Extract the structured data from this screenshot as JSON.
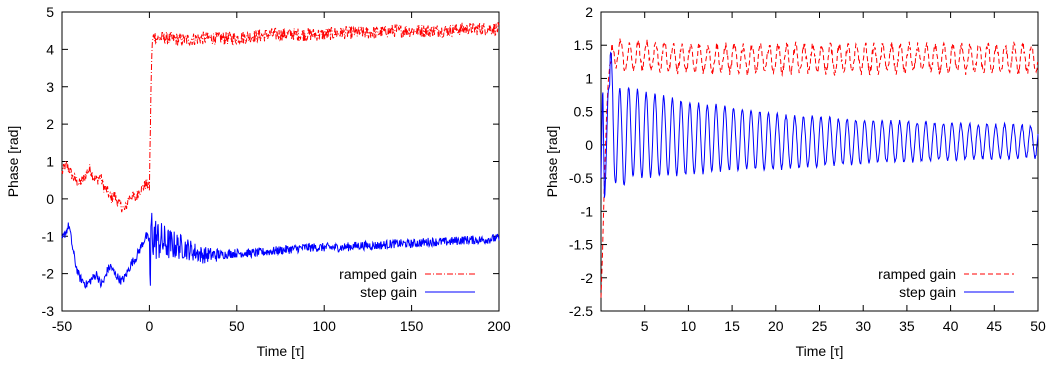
{
  "chart_data": [
    {
      "type": "line",
      "xlabel": "Time [τ]",
      "ylabel": "Phase [rad]",
      "xlim": [
        -50,
        200
      ],
      "ylim": [
        -3,
        5
      ],
      "xticks": [
        -50,
        0,
        50,
        100,
        150,
        200
      ],
      "yticks": [
        -3,
        -2,
        -1,
        0,
        1,
        2,
        3,
        4,
        5
      ],
      "legend_position": "bottom-right",
      "series": [
        {
          "name": "ramped gain",
          "color": "#ff0000",
          "dash": "dash-dot",
          "x": [
            -50,
            -48,
            -46,
            -44,
            -42,
            -40,
            -38,
            -36,
            -34,
            -32,
            -30,
            -28,
            -26,
            -24,
            -22,
            -20,
            -18,
            -16,
            -14,
            -12,
            -10,
            -8,
            -6,
            -4,
            -2,
            0,
            0.5,
            1,
            1.5,
            2,
            3,
            5,
            10,
            20,
            30,
            40,
            50,
            60,
            70,
            80,
            90,
            100,
            110,
            120,
            130,
            140,
            150,
            160,
            170,
            180,
            190,
            200
          ],
          "y": [
            0.7,
            0.9,
            0.8,
            0.6,
            0.5,
            0.4,
            0.5,
            0.7,
            0.8,
            0.6,
            0.5,
            0.6,
            0.3,
            0.2,
            0.0,
            0.1,
            -0.1,
            -0.2,
            -0.3,
            0.0,
            0.1,
            0.0,
            0.2,
            0.3,
            0.4,
            0.3,
            1.8,
            3.2,
            4.0,
            4.3,
            4.35,
            4.3,
            4.3,
            4.25,
            4.3,
            4.3,
            4.3,
            4.35,
            4.4,
            4.4,
            4.4,
            4.4,
            4.45,
            4.45,
            4.45,
            4.5,
            4.5,
            4.5,
            4.5,
            4.55,
            4.55,
            4.55
          ]
        },
        {
          "name": "step gain",
          "color": "#0000ff",
          "dash": "solid",
          "x": [
            -50,
            -48,
            -46,
            -44,
            -42,
            -40,
            -38,
            -36,
            -34,
            -32,
            -30,
            -28,
            -26,
            -24,
            -22,
            -20,
            -18,
            -16,
            -14,
            -12,
            -10,
            -8,
            -6,
            -4,
            -2,
            0,
            0.5,
            1,
            2,
            5,
            10,
            20,
            30,
            40,
            50,
            60,
            70,
            80,
            90,
            100,
            110,
            120,
            130,
            140,
            150,
            160,
            170,
            180,
            190,
            200
          ],
          "y": [
            -1.1,
            -0.9,
            -0.7,
            -1.3,
            -1.8,
            -2.1,
            -2.2,
            -2.3,
            -2.2,
            -2.1,
            -2.0,
            -2.3,
            -2.2,
            -1.9,
            -1.8,
            -2.0,
            -2.1,
            -2.2,
            -2.1,
            -1.9,
            -1.7,
            -1.6,
            -1.4,
            -1.2,
            -1.0,
            -1.1,
            -2.6,
            -0.6,
            -1.0,
            -1.1,
            -1.2,
            -1.3,
            -1.5,
            -1.5,
            -1.45,
            -1.45,
            -1.4,
            -1.35,
            -1.3,
            -1.3,
            -1.3,
            -1.25,
            -1.25,
            -1.2,
            -1.2,
            -1.15,
            -1.15,
            -1.1,
            -1.1,
            -1.05
          ]
        }
      ]
    },
    {
      "type": "line",
      "xlabel": "Time [τ]",
      "ylabel": "Phase [rad]",
      "xlim": [
        0,
        50
      ],
      "ylim": [
        -2.5,
        2
      ],
      "xticks": [
        5,
        10,
        15,
        20,
        25,
        30,
        35,
        40,
        45,
        50
      ],
      "yticks": [
        -2.5,
        -2,
        -1.5,
        -1,
        -0.5,
        0,
        0.5,
        1,
        1.5,
        2
      ],
      "legend_position": "bottom-right",
      "series": [
        {
          "name": "ramped gain",
          "color": "#ff0000",
          "dash": "dashed",
          "x": [
            0,
            0.2,
            0.4,
            0.6,
            0.8,
            1,
            1.5,
            2,
            3,
            5,
            10,
            15,
            20,
            25,
            30,
            35,
            40,
            45,
            50
          ],
          "y": [
            -2.3,
            -1.5,
            -0.5,
            0.3,
            0.9,
            1.2,
            1.35,
            1.4,
            1.3,
            1.35,
            1.3,
            1.3,
            1.3,
            1.3,
            1.3,
            1.3,
            1.3,
            1.3,
            1.3
          ]
        },
        {
          "name": "step gain",
          "color": "#0000ff",
          "dash": "solid",
          "x": [
            0,
            0.2,
            0.4,
            0.6,
            0.8,
            1,
            1.5,
            2,
            2.5,
            3,
            5,
            10,
            15,
            20,
            25,
            30,
            35,
            40,
            45,
            50
          ],
          "y": [
            -0.5,
            1.0,
            -0.9,
            -0.2,
            0.8,
            0.9,
            0.1,
            0.2,
            0.0,
            0.2,
            0.15,
            0.1,
            0.1,
            0.05,
            0.05,
            0.05,
            0.05,
            0.05,
            0.05,
            0.05
          ]
        }
      ]
    }
  ]
}
